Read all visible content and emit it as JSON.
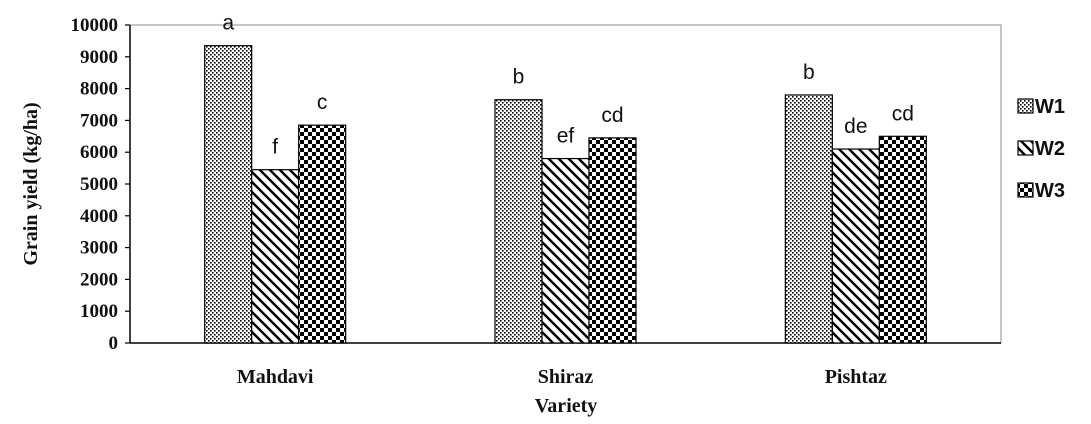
{
  "chart_data": {
    "type": "bar",
    "title": "",
    "xlabel": "Variety",
    "ylabel": "Grain yield (kg/ha)",
    "ylim": [
      0,
      10000
    ],
    "yticks": [
      0,
      1000,
      2000,
      3000,
      4000,
      5000,
      6000,
      7000,
      8000,
      9000,
      10000
    ],
    "categories": [
      "Mahdavi",
      "Shiraz",
      "Pishtaz"
    ],
    "series": [
      {
        "name": "W1",
        "pattern": "dots",
        "values": [
          9350,
          7650,
          7800
        ],
        "labels": [
          "a",
          "b",
          "b"
        ]
      },
      {
        "name": "W2",
        "pattern": "diagonal",
        "values": [
          5450,
          5800,
          6100
        ],
        "labels": [
          "f",
          "ef",
          "de"
        ]
      },
      {
        "name": "W3",
        "pattern": "checker",
        "values": [
          6850,
          6450,
          6500
        ],
        "labels": [
          "c",
          "cd",
          "cd"
        ]
      }
    ],
    "grid": false,
    "legend_position": "right",
    "colors": {
      "bar_stroke": "#000000",
      "axis": "#000000",
      "frame": "#8c8c8c"
    }
  }
}
